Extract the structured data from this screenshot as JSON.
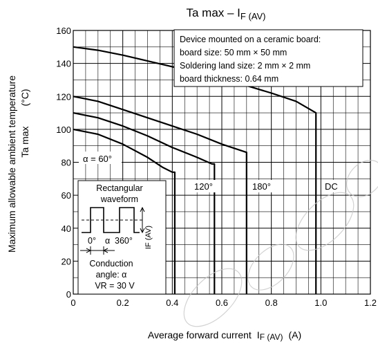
{
  "chart_data": {
    "type": "line",
    "title_main": "Ta max – I",
    "title_sub": "F (AV)",
    "xlabel_text": "Average forward current",
    "xlabel_symbol": "I",
    "xlabel_sub": "F (AV)",
    "xlabel_unit": "(A)",
    "ylabel_line1": "Maximum allowable ambient temperature",
    "ylabel_line2": "Ta max",
    "ylabel_unit": "(°C)",
    "xlim": [
      0,
      1.2
    ],
    "ylim": [
      0,
      160
    ],
    "x_ticks": [
      0,
      0.2,
      0.4,
      0.6,
      0.8,
      1.0,
      1.2
    ],
    "x_tick_labels": [
      "0",
      "0.2",
      "0.4",
      "0.6",
      "0.8",
      "1.0",
      "1.2"
    ],
    "y_ticks": [
      0,
      20,
      40,
      60,
      80,
      100,
      120,
      140,
      160
    ],
    "y_tick_labels": [
      "0",
      "20",
      "40",
      "60",
      "80",
      "100",
      "120",
      "140",
      "160"
    ],
    "grid": true,
    "series": [
      {
        "name": "α = 60°",
        "points": [
          [
            0,
            100
          ],
          [
            0.1,
            97
          ],
          [
            0.2,
            91
          ],
          [
            0.3,
            83
          ],
          [
            0.36,
            77
          ],
          [
            0.4,
            74
          ],
          [
            0.41,
            74
          ],
          [
            0.41,
            0
          ]
        ]
      },
      {
        "name": "120°",
        "points": [
          [
            0,
            110
          ],
          [
            0.1,
            107
          ],
          [
            0.2,
            102
          ],
          [
            0.3,
            96
          ],
          [
            0.4,
            89
          ],
          [
            0.5,
            83
          ],
          [
            0.56,
            79
          ],
          [
            0.57,
            79
          ],
          [
            0.57,
            0
          ]
        ]
      },
      {
        "name": "180°",
        "points": [
          [
            0,
            120
          ],
          [
            0.1,
            117
          ],
          [
            0.2,
            112
          ],
          [
            0.3,
            107
          ],
          [
            0.4,
            102
          ],
          [
            0.5,
            97
          ],
          [
            0.6,
            91
          ],
          [
            0.7,
            86
          ],
          [
            0.7,
            0
          ]
        ]
      },
      {
        "name": "DC",
        "points": [
          [
            0,
            150
          ],
          [
            0.1,
            148
          ],
          [
            0.2,
            145
          ],
          [
            0.4,
            138
          ],
          [
            0.6,
            131
          ],
          [
            0.8,
            122
          ],
          [
            0.9,
            117
          ],
          [
            0.98,
            110
          ],
          [
            0.98,
            0
          ]
        ]
      }
    ],
    "annotation_box": {
      "lines": [
        "Device mounted on a ceramic board:",
        "board size: 50 mm × 50 mm",
        "Soldering land size: 2 mm × 2 mm",
        "board thickness: 0.64 mm"
      ]
    },
    "inset": {
      "title_line1": "Rectangular",
      "title_line2": "waveform",
      "label_zero": "0°",
      "label_alpha": "α",
      "label_360": "360°",
      "current_label": "I",
      "current_sub": "F (AV)",
      "conduction_line1": "Conduction",
      "conduction_line2": "angle: α",
      "vr_label": "VR = 30 V"
    }
  }
}
